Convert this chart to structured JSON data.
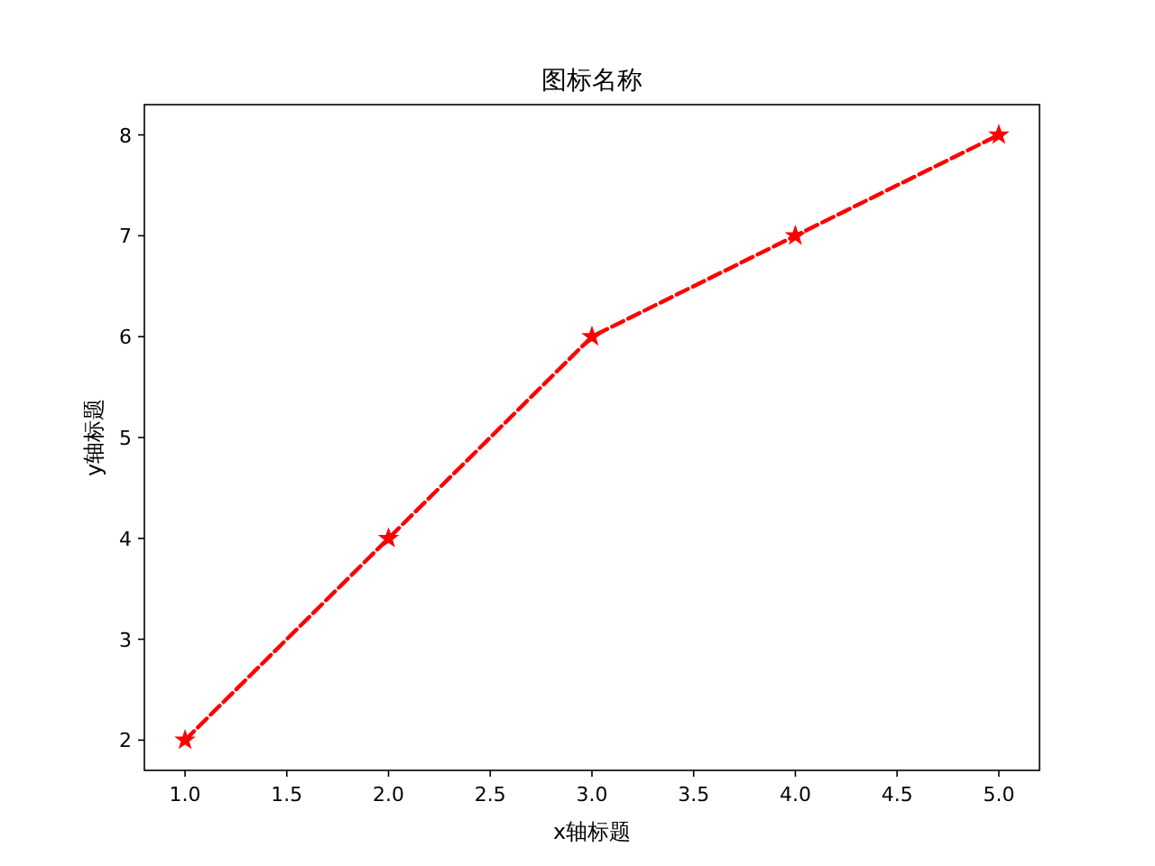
{
  "chart_data": {
    "type": "line",
    "title": "图标名称",
    "xlabel": "x轴标题",
    "ylabel": "y轴标题",
    "x": [
      1,
      2,
      3,
      4,
      5
    ],
    "series": [
      {
        "color": "#ff0000",
        "values": [
          2,
          4,
          6,
          7,
          8
        ]
      }
    ],
    "marker": "star",
    "line_style": "dashed",
    "xlim": [
      0.8,
      5.2
    ],
    "ylim": [
      1.7,
      8.3
    ],
    "xticks": [
      {
        "value": 1,
        "label": "1.0"
      },
      {
        "value": 1.5,
        "label": "1.5"
      },
      {
        "value": 2,
        "label": "2.0"
      },
      {
        "value": 2.5,
        "label": "2.5"
      },
      {
        "value": 3,
        "label": "3.0"
      },
      {
        "value": 3.5,
        "label": "3.5"
      },
      {
        "value": 4,
        "label": "4.0"
      },
      {
        "value": 4.5,
        "label": "4.5"
      },
      {
        "value": 5,
        "label": "5.0"
      }
    ],
    "yticks": [
      2,
      3,
      4,
      5,
      6,
      7,
      8
    ]
  }
}
